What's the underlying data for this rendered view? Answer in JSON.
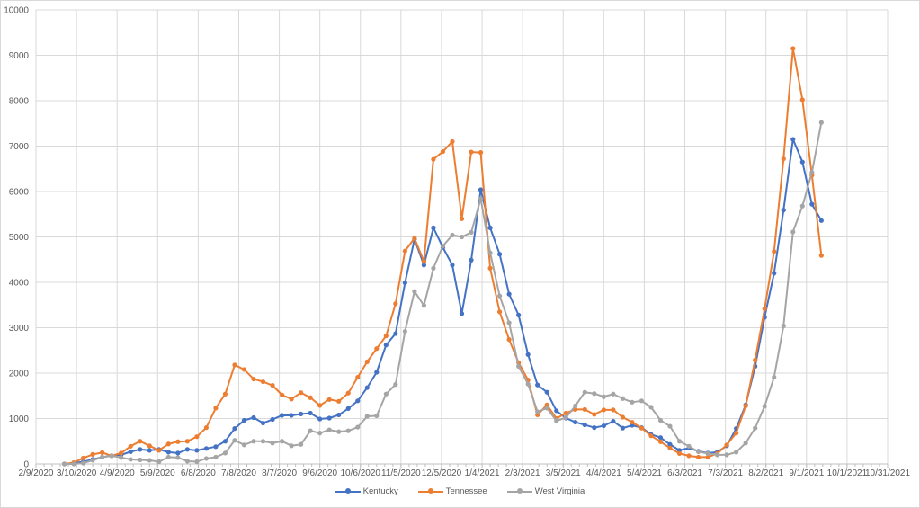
{
  "chart_data": {
    "type": "line",
    "title": "",
    "xlabel": "",
    "ylabel": "",
    "xlim": [
      "2/9/2020",
      "10/31/2021"
    ],
    "ylim": [
      0,
      10000
    ],
    "y_ticks": [
      "0",
      "1000",
      "2000",
      "3000",
      "4000",
      "5000",
      "6000",
      "7000",
      "8000",
      "9000",
      "10000"
    ],
    "x_ticks": [
      "2/9/2020",
      "3/10/2020",
      "4/9/2020",
      "5/9/2020",
      "6/8/2020",
      "7/8/2020",
      "8/7/2020",
      "9/6/2020",
      "10/6/2020",
      "11/5/2020",
      "12/5/2020",
      "1/4/2021",
      "2/3/2021",
      "3/5/2021",
      "4/4/2021",
      "5/4/2021",
      "6/3/2021",
      "7/3/2021",
      "8/2/2021",
      "9/1/2021",
      "10/1/2021",
      "10/31/2021"
    ],
    "grid": true,
    "legend_position": "bottom",
    "x": [
      "3/1/2020",
      "3/8/2020",
      "3/15/2020",
      "3/22/2020",
      "3/29/2020",
      "4/5/2020",
      "4/12/2020",
      "4/19/2020",
      "4/26/2020",
      "5/3/2020",
      "5/10/2020",
      "5/17/2020",
      "5/24/2020",
      "5/31/2020",
      "6/7/2020",
      "6/14/2020",
      "6/21/2020",
      "6/28/2020",
      "7/5/2020",
      "7/12/2020",
      "7/19/2020",
      "7/26/2020",
      "8/2/2020",
      "8/9/2020",
      "8/16/2020",
      "8/23/2020",
      "8/30/2020",
      "9/6/2020",
      "9/13/2020",
      "9/20/2020",
      "9/27/2020",
      "10/4/2020",
      "10/11/2020",
      "10/18/2020",
      "10/25/2020",
      "11/1/2020",
      "11/8/2020",
      "11/15/2020",
      "11/22/2020",
      "11/29/2020",
      "12/6/2020",
      "12/13/2020",
      "12/20/2020",
      "12/27/2020",
      "1/3/2021",
      "1/10/2021",
      "1/17/2021",
      "1/24/2021",
      "1/31/2021",
      "2/7/2021",
      "2/14/2021",
      "2/21/2021",
      "2/28/2021",
      "3/7/2021",
      "3/14/2021",
      "3/21/2021",
      "3/28/2021",
      "4/4/2021",
      "4/11/2021",
      "4/18/2021",
      "4/25/2021",
      "5/2/2021",
      "5/9/2021",
      "5/16/2021",
      "5/23/2021",
      "5/30/2021",
      "6/6/2021",
      "6/13/2021",
      "6/20/2021",
      "6/27/2021",
      "7/4/2021",
      "7/11/2021",
      "7/18/2021",
      "7/25/2021",
      "8/1/2021",
      "8/8/2021",
      "8/15/2021",
      "8/22/2021",
      "8/29/2021",
      "9/5/2021",
      "9/12/2021"
    ],
    "series": [
      {
        "name": "Kentucky",
        "color": "#4472c4",
        "values": [
          0,
          20,
          50,
          100,
          150,
          180,
          200,
          270,
          320,
          300,
          320,
          260,
          240,
          320,
          300,
          340,
          380,
          500,
          780,
          960,
          1020,
          900,
          980,
          1070,
          1070,
          1100,
          1120,
          990,
          1010,
          1080,
          1220,
          1390,
          1680,
          2020,
          2620,
          2870,
          3990,
          4950,
          4380,
          5200,
          4770,
          4380,
          3310,
          4490,
          6040,
          5200,
          4620,
          3740,
          3280,
          2410,
          1740,
          1580,
          1170,
          1010,
          920,
          860,
          800,
          840,
          940,
          790,
          850,
          800,
          650,
          580,
          430,
          300,
          350,
          280,
          240,
          260,
          400,
          780,
          1300,
          2150,
          3230,
          4200,
          5590,
          7150,
          6650,
          5720,
          5360
        ]
      },
      {
        "name": "Tennessee",
        "color": "#ed7d31",
        "values": [
          0,
          30,
          130,
          210,
          250,
          180,
          240,
          390,
          500,
          400,
          300,
          440,
          490,
          500,
          600,
          800,
          1230,
          1540,
          2180,
          2080,
          1870,
          1810,
          1730,
          1520,
          1430,
          1570,
          1460,
          1290,
          1420,
          1380,
          1560,
          1910,
          2250,
          2540,
          2820,
          3530,
          4690,
          4970,
          4460,
          6710,
          6880,
          7100,
          5400,
          6870,
          6860,
          4310,
          3350,
          2740,
          2230,
          1850,
          1080,
          1300,
          1000,
          1120,
          1200,
          1200,
          1090,
          1190,
          1190,
          1030,
          920,
          790,
          620,
          490,
          350,
          230,
          180,
          150,
          150,
          230,
          420,
          680,
          1280,
          2290,
          3420,
          4680,
          6720,
          9150,
          8020,
          6360,
          4590
        ]
      },
      {
        "name": "West Virginia",
        "color": "#a5a5a5",
        "values": [
          0,
          0,
          20,
          80,
          150,
          180,
          140,
          100,
          90,
          80,
          50,
          150,
          140,
          60,
          50,
          120,
          150,
          240,
          520,
          420,
          500,
          500,
          460,
          500,
          400,
          430,
          730,
          680,
          750,
          710,
          730,
          810,
          1050,
          1060,
          1540,
          1750,
          2920,
          3800,
          3490,
          4310,
          4800,
          5040,
          5000,
          5100,
          5840,
          4650,
          3700,
          3110,
          2150,
          1760,
          1150,
          1230,
          950,
          1020,
          1280,
          1580,
          1550,
          1480,
          1540,
          1440,
          1360,
          1390,
          1250,
          960,
          830,
          500,
          390,
          270,
          230,
          200,
          200,
          260,
          460,
          790,
          1270,
          1910,
          3040,
          5110,
          5680,
          6420,
          7520
        ]
      }
    ]
  }
}
